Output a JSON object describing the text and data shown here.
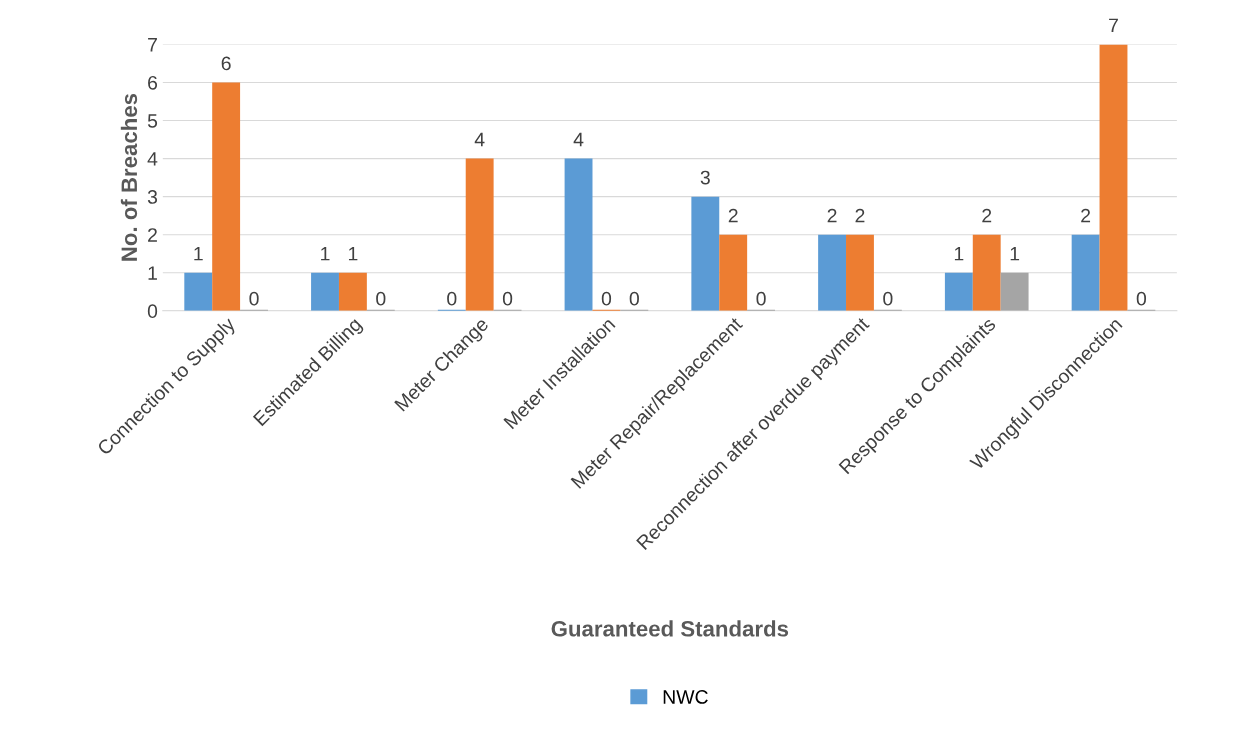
{
  "chart_data": {
    "type": "bar",
    "xlabel": "Guaranteed Standards",
    "ylabel": "No. of Breaches",
    "categories": [
      "Connection to Supply",
      "Estimated Billing",
      "Meter Change",
      "Meter Installation",
      "Meter Repair/Replacement",
      "Reconnection after overdue payment",
      "Response to Complaints",
      "Wrongful Disconnection"
    ],
    "series": [
      {
        "name": "NWC",
        "color": "#5b9bd5",
        "values": [
          1,
          1,
          0,
          4,
          3,
          2,
          1,
          2
        ]
      },
      {
        "color": "#ed7d31",
        "values": [
          6,
          1,
          4,
          0,
          2,
          2,
          2,
          7
        ]
      },
      {
        "color": "#a5a5a5",
        "values": [
          0,
          0,
          0,
          0,
          0,
          0,
          1,
          0
        ]
      }
    ],
    "ylim": [
      0,
      7
    ],
    "yticks": [
      0,
      1,
      2,
      3,
      4,
      5,
      6,
      7
    ],
    "grid": "y",
    "legend": "bottom",
    "data_labels": true
  }
}
